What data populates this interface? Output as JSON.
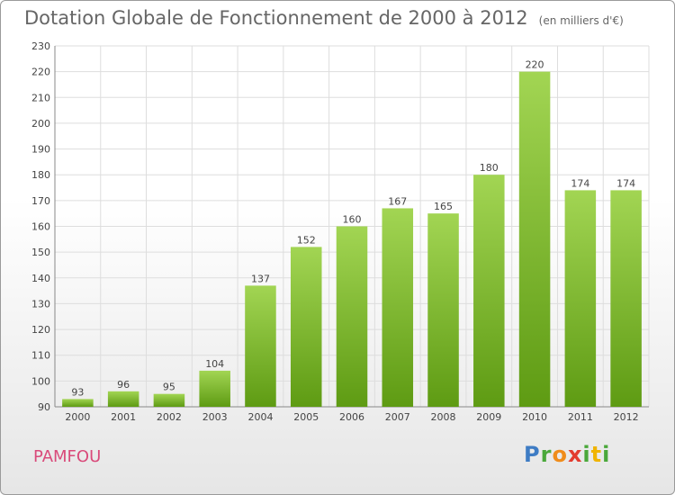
{
  "title": "Dotation Globale de Fonctionnement de 2000 à 2012",
  "unit_note": "(en milliers d'€)",
  "commune": "PAMFOU",
  "logo": {
    "p": "P",
    "r": "r",
    "o": "o",
    "x": "x",
    "i": "i",
    "t": "t",
    "i2": "i"
  },
  "colors": {
    "bar_top": "#9fd14e",
    "bar_bottom": "#5f9e14",
    "grid": "#dddddd",
    "axis_text": "#444444",
    "title": "#666666",
    "commune": "#d94a7a"
  },
  "chart_data": {
    "type": "bar",
    "categories": [
      "2000",
      "2001",
      "2002",
      "2003",
      "2004",
      "2005",
      "2006",
      "2007",
      "2008",
      "2009",
      "2010",
      "2011",
      "2012"
    ],
    "values": [
      93,
      96,
      95,
      104,
      137,
      152,
      160,
      167,
      165,
      180,
      220,
      174,
      174
    ],
    "ylim": [
      90,
      230
    ],
    "yticks": [
      90,
      100,
      110,
      120,
      130,
      140,
      150,
      160,
      170,
      180,
      190,
      200,
      210,
      220,
      230
    ],
    "grid": true,
    "xlabel": "",
    "ylabel": ""
  }
}
